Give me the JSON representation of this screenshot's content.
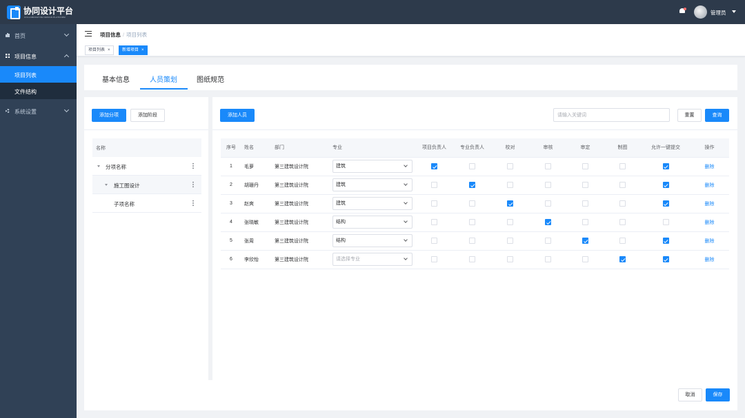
{
  "app": {
    "title": "协同设计平台",
    "subtitle": "COLLABORATIVE DESIGN PLATFORM"
  },
  "header": {
    "user_name": "管理员"
  },
  "sidebar": {
    "items": [
      {
        "label": "首页"
      },
      {
        "label": "项目信息",
        "children": [
          {
            "label": "项目列表"
          },
          {
            "label": "文件结构"
          }
        ]
      },
      {
        "label": "系统设置"
      }
    ]
  },
  "breadcrumb": {
    "parent": "项目信息",
    "separator": "/",
    "current": "项目列表"
  },
  "tags": [
    {
      "label": "项目列表"
    },
    {
      "label": "新增项目"
    }
  ],
  "tabs": [
    {
      "label": "基本信息"
    },
    {
      "label": "人员策划"
    },
    {
      "label": "图纸规范"
    }
  ],
  "left_panel": {
    "add_subitem_label": "添加分项",
    "add_stage_label": "添加阶段",
    "tree_header": "名称",
    "nodes": [
      {
        "label": "分项名称"
      },
      {
        "label": "施工图设计"
      },
      {
        "label": "子项名称"
      }
    ]
  },
  "right_panel": {
    "add_person_label": "添加人员",
    "search_placeholder": "请输入关键词",
    "reset_label": "重置",
    "query_label": "查询",
    "columns": [
      "序号",
      "姓名",
      "部门",
      "专业",
      "项目负责人",
      "专业负责人",
      "校对",
      "审核",
      "审定",
      "制图",
      "允许一键提交",
      "操作"
    ],
    "rows": [
      {
        "no": "1",
        "name": "毛萝",
        "dept": "第三建筑设计院",
        "major": "建筑",
        "checks": [
          true,
          false,
          false,
          false,
          false,
          false,
          true
        ],
        "action": "删除"
      },
      {
        "no": "2",
        "name": "胡珊丹",
        "dept": "第三建筑设计院",
        "major": "建筑",
        "checks": [
          false,
          true,
          false,
          false,
          false,
          false,
          true
        ],
        "action": "删除"
      },
      {
        "no": "3",
        "name": "赵爽",
        "dept": "第三建筑设计院",
        "major": "建筑",
        "checks": [
          false,
          false,
          true,
          false,
          false,
          false,
          true
        ],
        "action": "删除"
      },
      {
        "no": "4",
        "name": "张晓敏",
        "dept": "第三建筑设计院",
        "major": "结构",
        "checks": [
          false,
          false,
          false,
          true,
          false,
          false,
          false
        ],
        "action": "删除"
      },
      {
        "no": "5",
        "name": "张周",
        "dept": "第三建筑设计院",
        "major": "结构",
        "checks": [
          false,
          false,
          false,
          false,
          true,
          false,
          true
        ],
        "action": "删除"
      },
      {
        "no": "6",
        "name": "李欣怡",
        "dept": "第三建筑设计院",
        "major": "",
        "major_placeholder": "请选择专业",
        "checks": [
          false,
          false,
          false,
          false,
          false,
          true,
          true
        ],
        "action": "删除"
      }
    ]
  },
  "footer": {
    "cancel_label": "取消",
    "save_label": "保存"
  },
  "colors": {
    "primary": "#1989fa",
    "sidebar_bg": "#304156",
    "topbar_bg": "#2d3a4b",
    "submenu_bg": "#1f2d3d"
  },
  "icons": {
    "logo": "app-logo-icon",
    "bell": "bell-icon",
    "menu_toggle": "hamburger-icon",
    "home": "chart-bar-icon",
    "project": "grid-icon",
    "settings": "gear-icon"
  }
}
